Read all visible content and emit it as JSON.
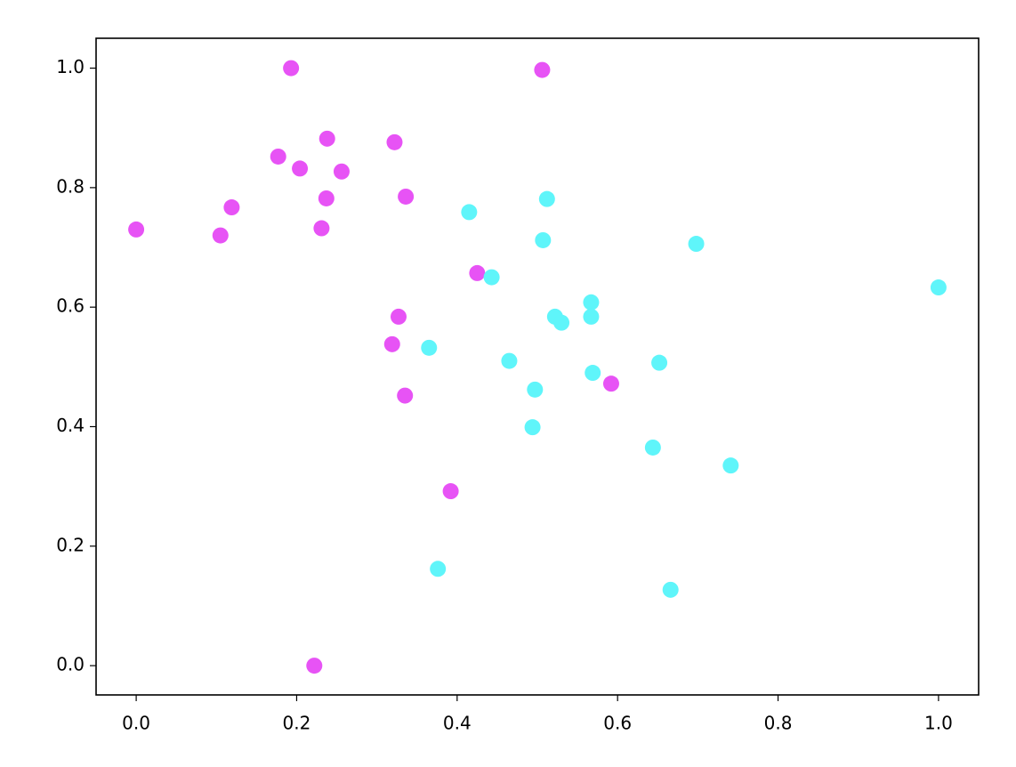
{
  "chart_data": {
    "type": "scatter",
    "xlim": [
      -0.05,
      1.05
    ],
    "ylim": [
      -0.049,
      1.05
    ],
    "xticks": [
      {
        "value": 0,
        "label": "0.0"
      },
      {
        "value": 0.2,
        "label": "0.2"
      },
      {
        "value": 0.4,
        "label": "0.4"
      },
      {
        "value": 0.6,
        "label": "0.6"
      },
      {
        "value": 0.8,
        "label": "0.8"
      },
      {
        "value": 1,
        "label": "1.0"
      }
    ],
    "yticks": [
      {
        "value": 0,
        "label": "0.0"
      },
      {
        "value": 0.2,
        "label": "0.2"
      },
      {
        "value": 0.4,
        "label": "0.4"
      },
      {
        "value": 0.6,
        "label": "0.6"
      },
      {
        "value": 0.8,
        "label": "0.8"
      },
      {
        "value": 1,
        "label": "1.0"
      }
    ],
    "grid": false,
    "series": [
      {
        "color": "#e753f5",
        "x": [
          0.193,
          0.506,
          0.238,
          0.322,
          0.177,
          0.204,
          0.256,
          0.336,
          0.237,
          0.119,
          0.0,
          0.105,
          0.231,
          0.425,
          0.327,
          0.319,
          0.335,
          0.592,
          0.392,
          0.222
        ],
        "values": [
          1.0,
          0.997,
          0.882,
          0.876,
          0.852,
          0.832,
          0.827,
          0.785,
          0.782,
          0.767,
          0.73,
          0.72,
          0.732,
          0.657,
          0.584,
          0.538,
          0.452,
          0.472,
          0.292,
          0.0
        ]
      },
      {
        "color": "#5ff5fa",
        "x": [
          0.415,
          0.512,
          0.507,
          0.698,
          1.0,
          0.443,
          0.567,
          0.567,
          0.522,
          0.53,
          0.365,
          0.465,
          0.569,
          0.652,
          0.497,
          0.494,
          0.644,
          0.741,
          0.376,
          0.666
        ],
        "values": [
          0.759,
          0.781,
          0.712,
          0.706,
          0.633,
          0.65,
          0.608,
          0.584,
          0.584,
          0.574,
          0.532,
          0.51,
          0.49,
          0.507,
          0.462,
          0.399,
          0.365,
          0.335,
          0.162,
          0.127
        ]
      }
    ]
  }
}
